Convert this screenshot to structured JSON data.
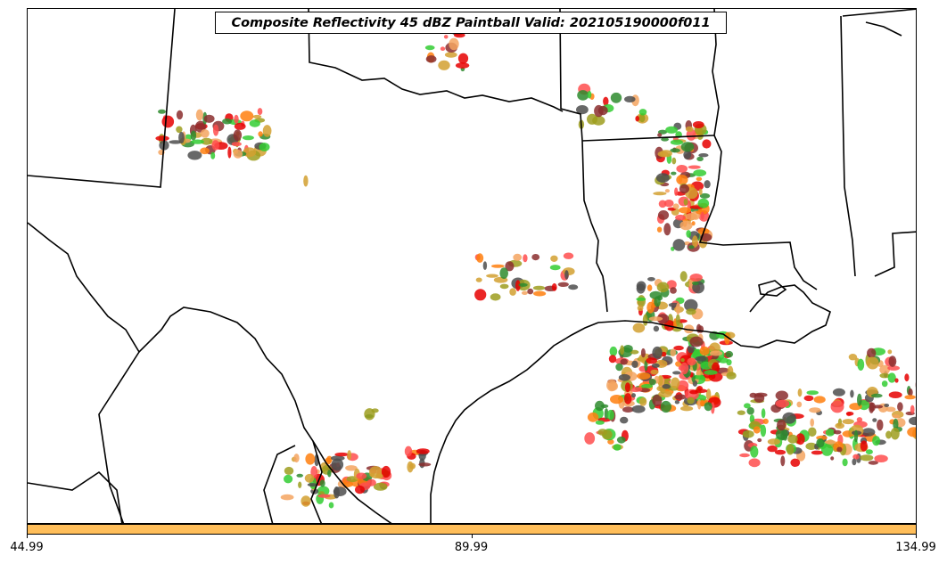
{
  "title": "Composite Reflectivity 45 dBZ Paintball Valid: 202105190000f011",
  "colorbar": {
    "color": "#ffbe5a",
    "ticks": [
      {
        "value": "44.99",
        "fraction": 0.0
      },
      {
        "value": "89.99",
        "fraction": 0.5
      },
      {
        "value": "134.99",
        "fraction": 1.0
      }
    ]
  },
  "member_colors": [
    "#ff4d4d",
    "#e60000",
    "#2e8b2e",
    "#33cc33",
    "#9e9e1e",
    "#8b2e2e",
    "#ff7f0e",
    "#f4a460",
    "#4d4d4d",
    "#d2a030"
  ],
  "map": {
    "borders_color": "#000000",
    "coastline_color": "#000000"
  }
}
